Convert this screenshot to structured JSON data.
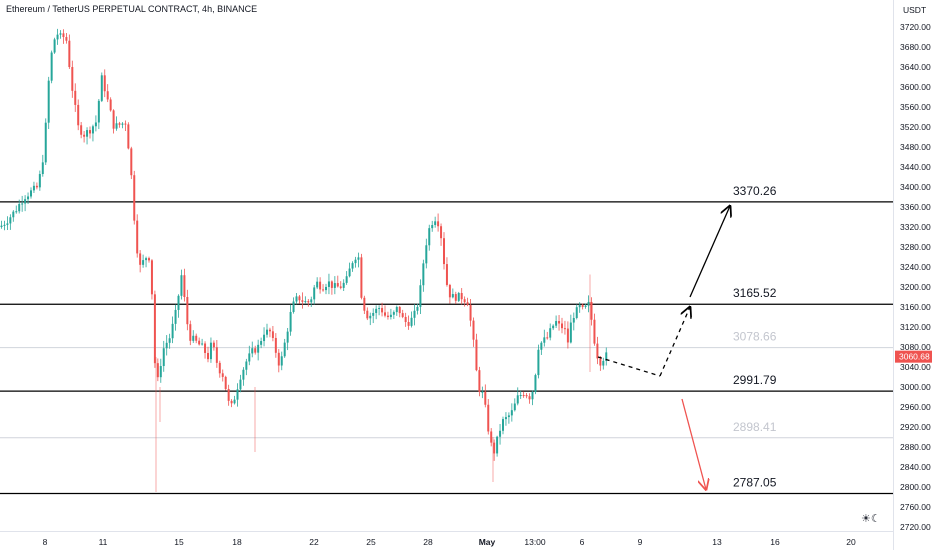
{
  "header": {
    "title": "Ethereum / TetherUS PERPETUAL CONTRACT, 4h, BINANCE"
  },
  "toolbar": {
    "theme_icon": "sun-moon-icon"
  },
  "colors": {
    "up": "#26a69a",
    "down": "#ef5350",
    "level_line": "#000000",
    "faint_line": "#d1d4dc",
    "faint_label": "#c3c6ce",
    "price_badge": "#ef5350",
    "arrow_up": "#000000",
    "arrow_down": "#ef5350"
  },
  "chart_data": {
    "type": "candlestick",
    "title": "Ethereum / TetherUS PERPETUAL CONTRACT, 4h, BINANCE",
    "y_unit": "USDT",
    "ylim": [
      2720,
      3745
    ],
    "y_ticks": [
      2720,
      2760,
      2800,
      2840,
      2880,
      2920,
      2960,
      3000,
      3040,
      3080,
      3120,
      3160,
      3200,
      3240,
      3280,
      3320,
      3360,
      3400,
      3440,
      3480,
      3520,
      3560,
      3600,
      3640,
      3680,
      3720
    ],
    "x_ticks": [
      "8",
      "11",
      "15",
      "18",
      "22",
      "25",
      "28",
      "May",
      "13:00",
      "6",
      "9",
      "13",
      "16",
      "20"
    ],
    "current_price": "3060.68",
    "levels": [
      {
        "value": 3370.26,
        "label": "3370.26",
        "style": "solid"
      },
      {
        "value": 3165.52,
        "label": "3165.52",
        "style": "solid"
      },
      {
        "value": 3078.66,
        "label": "3078.66",
        "style": "faint"
      },
      {
        "value": 2991.79,
        "label": "2991.79",
        "style": "solid"
      },
      {
        "value": 2898.41,
        "label": "2898.41",
        "style": "faint"
      },
      {
        "value": 2787.05,
        "label": "2787.05",
        "style": "solid"
      }
    ],
    "anchor_points": [
      [
        0,
        3320
      ],
      [
        8,
        3335
      ],
      [
        16,
        3355
      ],
      [
        24,
        3380
      ],
      [
        32,
        3392
      ],
      [
        38,
        3400
      ],
      [
        44,
        3470
      ],
      [
        50,
        3650
      ],
      [
        56,
        3710
      ],
      [
        60,
        3700
      ],
      [
        66,
        3700
      ],
      [
        72,
        3600
      ],
      [
        78,
        3520
      ],
      [
        84,
        3505
      ],
      [
        90,
        3515
      ],
      [
        96,
        3530
      ],
      [
        102,
        3620
      ],
      [
        108,
        3570
      ],
      [
        114,
        3520
      ],
      [
        120,
        3525
      ],
      [
        126,
        3530
      ],
      [
        131,
        3430
      ],
      [
        136,
        3290
      ],
      [
        140,
        3240
      ],
      [
        146,
        3260
      ],
      [
        150,
        3260
      ],
      [
        153,
        3150
      ],
      [
        156,
        2990
      ],
      [
        160,
        3040
      ],
      [
        164,
        3080
      ],
      [
        170,
        3100
      ],
      [
        176,
        3150
      ],
      [
        182,
        3230
      ],
      [
        186,
        3140
      ],
      [
        190,
        3100
      ],
      [
        196,
        3090
      ],
      [
        202,
        3080
      ],
      [
        208,
        3060
      ],
      [
        212,
        3090
      ],
      [
        218,
        3040
      ],
      [
        224,
        3020
      ],
      [
        228,
        2970
      ],
      [
        232,
        2960
      ],
      [
        236,
        2990
      ],
      [
        240,
        3020
      ],
      [
        246,
        3050
      ],
      [
        252,
        3070
      ],
      [
        258,
        3080
      ],
      [
        264,
        3110
      ],
      [
        270,
        3110
      ],
      [
        276,
        3070
      ],
      [
        280,
        3040
      ],
      [
        286,
        3100
      ],
      [
        292,
        3160
      ],
      [
        298,
        3180
      ],
      [
        304,
        3170
      ],
      [
        310,
        3170
      ],
      [
        316,
        3210
      ],
      [
        322,
        3200
      ],
      [
        328,
        3210
      ],
      [
        334,
        3200
      ],
      [
        340,
        3200
      ],
      [
        346,
        3210
      ],
      [
        352,
        3250
      ],
      [
        358,
        3270
      ],
      [
        362,
        3170
      ],
      [
        368,
        3140
      ],
      [
        374,
        3150
      ],
      [
        380,
        3160
      ],
      [
        386,
        3140
      ],
      [
        392,
        3140
      ],
      [
        398,
        3160
      ],
      [
        404,
        3130
      ],
      [
        410,
        3130
      ],
      [
        416,
        3150
      ],
      [
        420,
        3190
      ],
      [
        424,
        3260
      ],
      [
        428,
        3310
      ],
      [
        432,
        3330
      ],
      [
        436,
        3340
      ],
      [
        440,
        3320
      ],
      [
        444,
        3250
      ],
      [
        448,
        3190
      ],
      [
        452,
        3180
      ],
      [
        456,
        3180
      ],
      [
        462,
        3180
      ],
      [
        468,
        3170
      ],
      [
        474,
        3080
      ],
      [
        478,
        3000
      ],
      [
        482,
        2990
      ],
      [
        486,
        2950
      ],
      [
        490,
        2890
      ],
      [
        494,
        2870
      ],
      [
        498,
        2900
      ],
      [
        502,
        2930
      ],
      [
        508,
        2940
      ],
      [
        512,
        2950
      ],
      [
        518,
        2980
      ],
      [
        524,
        2990
      ],
      [
        530,
        2980
      ],
      [
        534,
        3000
      ],
      [
        538,
        3080
      ],
      [
        542,
        3090
      ],
      [
        548,
        3100
      ],
      [
        552,
        3120
      ],
      [
        556,
        3130
      ],
      [
        560,
        3120
      ],
      [
        564,
        3120
      ],
      [
        568,
        3090
      ],
      [
        572,
        3140
      ],
      [
        576,
        3150
      ],
      [
        580,
        3160
      ],
      [
        584,
        3150
      ],
      [
        588,
        3170
      ],
      [
        592,
        3130
      ],
      [
        596,
        3070
      ],
      [
        600,
        3050
      ],
      [
        604,
        3060
      ],
      [
        608,
        3065
      ]
    ],
    "projection": [
      {
        "from": [
          598,
          3060
        ],
        "to": [
          660,
          3022
        ],
        "style": "dashed",
        "color": "#000000"
      },
      {
        "from": [
          660,
          3022
        ],
        "to": [
          690,
          3160
        ],
        "style": "dashed",
        "color": "#000000",
        "arrow": true
      },
      {
        "from": [
          690,
          3180
        ],
        "to": [
          730,
          3362
        ],
        "style": "solid",
        "color": "#000000",
        "arrow": true
      },
      {
        "from": [
          682,
          2976
        ],
        "to": [
          706,
          2795
        ],
        "style": "solid",
        "color": "#ef5350",
        "arrow": true
      }
    ]
  }
}
